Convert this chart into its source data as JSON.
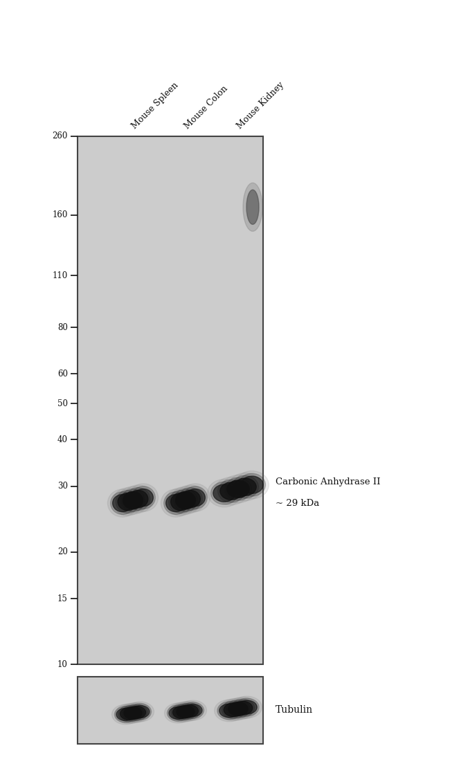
{
  "bg_color": "#ffffff",
  "gel_bg_color": "#cccccc",
  "gel_border_color": "#444444",
  "text_color": "#111111",
  "band_color": "#111111",
  "figure_width": 6.5,
  "figure_height": 11.2,
  "mw_markers": [
    260,
    160,
    110,
    80,
    60,
    50,
    40,
    30,
    20,
    15,
    10
  ],
  "lane_labels": [
    "Mouse Spleen",
    "Mouse Colon",
    "Mouse Kidney"
  ],
  "band_annotation_line1": "Carbonic Anhydrase II",
  "band_annotation_line2": "~ 29 kDa",
  "tubulin_label": "Tubulin"
}
